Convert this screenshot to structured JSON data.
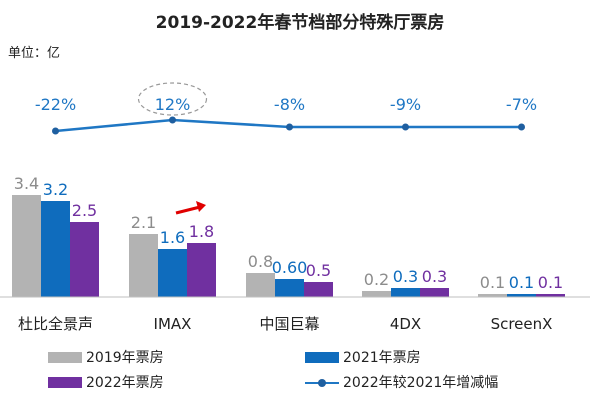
{
  "title": "2019-2022年春节档部分特殊厅票房",
  "unit_label": "单位：亿",
  "colors": {
    "y2019": "#b3b3b3",
    "y2021": "#0f6cbd",
    "y2022": "#7030a0",
    "line": "#1f77c4",
    "arrow": "#e00000"
  },
  "chart_data": {
    "type": "bar",
    "categories": [
      "杜比全景声",
      "IMAX",
      "中国巨幕",
      "4DX",
      "ScreenX"
    ],
    "series": [
      {
        "name": "2019年票房",
        "values": [
          3.4,
          2.1,
          0.8,
          0.2,
          0.1
        ],
        "labels": [
          "3.4",
          "2.1",
          "0.8",
          "0.2",
          "0.1"
        ]
      },
      {
        "name": "2021年票房",
        "values": [
          3.2,
          1.6,
          0.6,
          0.3,
          0.1
        ],
        "labels": [
          "3.2",
          "1.6",
          "0.60",
          "0.3",
          "0.1"
        ]
      },
      {
        "name": "2022年票房",
        "values": [
          2.5,
          1.8,
          0.5,
          0.3,
          0.1
        ],
        "labels": [
          "2.5",
          "1.8",
          "0.5",
          "0.3",
          "0.1"
        ]
      }
    ],
    "line_series": {
      "name": "2022年较2021年增减幅",
      "values": [
        -22,
        12,
        -8,
        -9,
        -7
      ],
      "labels": [
        "-22%",
        "12%",
        "-8%",
        "-9%",
        "-7%"
      ]
    },
    "highlighted_category": "IMAX"
  },
  "legend": [
    {
      "label": "2019年票房",
      "key": "y2019",
      "kind": "bar"
    },
    {
      "label": "2021年票房",
      "key": "y2021",
      "kind": "bar"
    },
    {
      "label": "2022年票房",
      "key": "y2022",
      "kind": "bar"
    },
    {
      "label": "2022年较2021年增减幅",
      "key": "line",
      "kind": "line"
    }
  ]
}
